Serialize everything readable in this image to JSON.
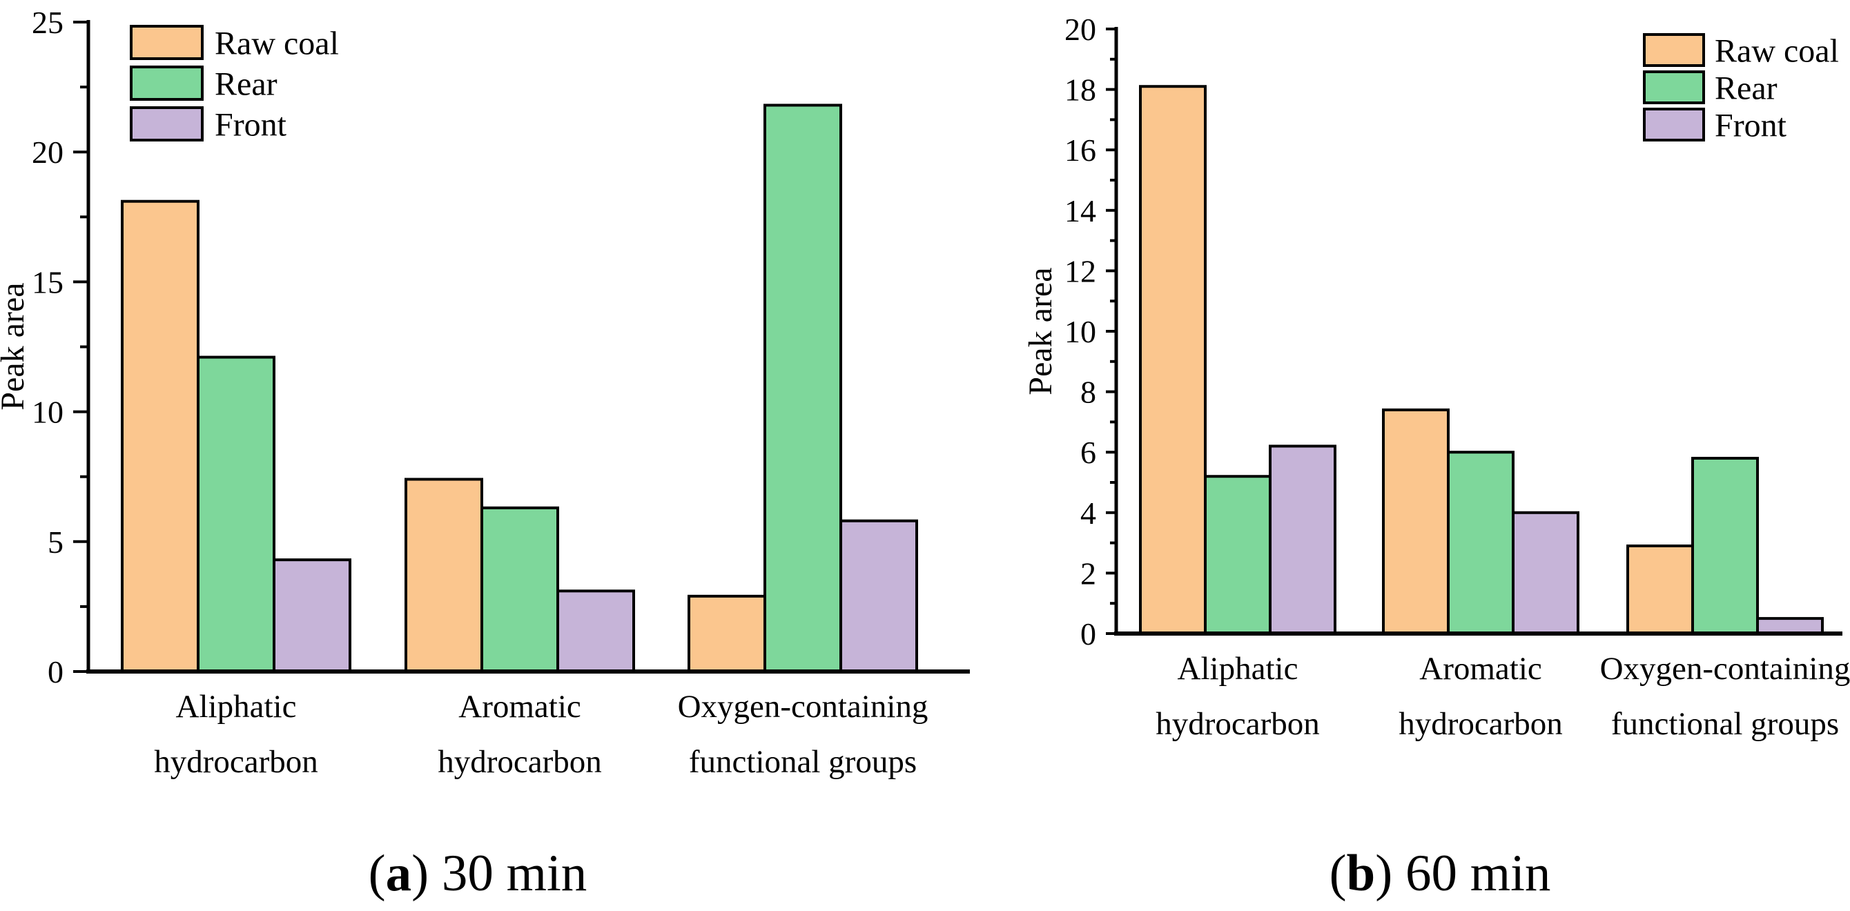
{
  "figure": {
    "background": "#FFFFFF",
    "text_color": "#000000",
    "axis_color": "#000000",
    "bar_border_color": "#000000"
  },
  "chart_data": [
    {
      "type": "bar",
      "panel": "a",
      "caption": {
        "open": "(",
        "letter": "a",
        "close": ")",
        "rest": " 30 min"
      },
      "caption_full": "(a) 30 min",
      "ylabel": "Peak area",
      "xlabel": "",
      "ylim": [
        0,
        25
      ],
      "ytick_step": 5,
      "yminor_step": 2.5,
      "ytick_labels": [
        "0",
        "5",
        "10",
        "15",
        "20",
        "25"
      ],
      "grid": false,
      "categories": [
        [
          "Aliphatic",
          "hydrocarbon"
        ],
        [
          "Aromatic",
          "hydrocarbon"
        ],
        [
          "Oxygen-containing",
          "functional groups"
        ]
      ],
      "series": [
        {
          "name": "Raw coal",
          "color": "#FBC68E",
          "values": [
            18.1,
            7.4,
            2.9
          ]
        },
        {
          "name": "Rear",
          "color": "#7ED79B",
          "values": [
            12.1,
            6.3,
            21.8
          ]
        },
        {
          "name": "Front",
          "color": "#C6B4D8",
          "values": [
            4.3,
            3.1,
            5.8
          ]
        }
      ],
      "legend": {
        "position": "top-left",
        "items": [
          "Raw coal",
          "Rear",
          "Front"
        ]
      }
    },
    {
      "type": "bar",
      "panel": "b",
      "caption": {
        "open": "(",
        "letter": "b",
        "close": ")",
        "rest": " 60 min"
      },
      "caption_full": "(b) 60 min",
      "ylabel": "Peak area",
      "xlabel": "",
      "ylim": [
        0,
        20
      ],
      "ytick_step": 2,
      "yminor_step": 1,
      "ytick_labels": [
        "0",
        "2",
        "4",
        "6",
        "8",
        "10",
        "12",
        "14",
        "16",
        "18",
        "20"
      ],
      "grid": false,
      "categories": [
        [
          "Aliphatic",
          "hydrocarbon"
        ],
        [
          "Aromatic",
          "hydrocarbon"
        ],
        [
          "Oxygen-containing",
          "functional groups"
        ]
      ],
      "series": [
        {
          "name": "Raw coal",
          "color": "#FBC68E",
          "values": [
            18.1,
            7.4,
            2.9
          ]
        },
        {
          "name": "Rear",
          "color": "#7ED79B",
          "values": [
            5.2,
            6.0,
            5.8
          ]
        },
        {
          "name": "Front",
          "color": "#C6B4D8",
          "values": [
            6.2,
            4.0,
            0.5
          ]
        }
      ],
      "legend": {
        "position": "top-right",
        "items": [
          "Raw coal",
          "Rear",
          "Front"
        ]
      }
    }
  ]
}
